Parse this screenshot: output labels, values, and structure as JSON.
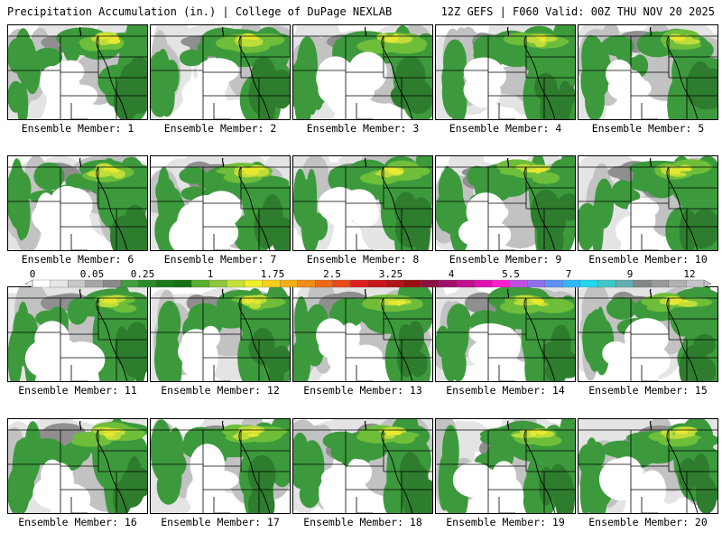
{
  "header": {
    "title_left": "Precipitation Accumulation (in.) | College of DuPage NEXLAB",
    "title_right": "12Z GEFS | F060 Valid: 00Z THU NOV 20 2025"
  },
  "colorbar": {
    "labels": [
      "0",
      "0.05",
      "0.25",
      "1",
      "1.75",
      "2.5",
      "3.25",
      "4",
      "5.5",
      "7",
      "9",
      "12"
    ],
    "colors": [
      "#ffffff",
      "#e6e6e6",
      "#c8c8c8",
      "#a6a6a6",
      "#8a8a8a",
      "#3f9e3f",
      "#2a8a2a",
      "#1a7a1a",
      "#157015",
      "#5ab02e",
      "#8cc63a",
      "#c6e03a",
      "#f0f028",
      "#f7d020",
      "#f5b018",
      "#f08c18",
      "#ec6a1a",
      "#e84a1c",
      "#e02020",
      "#c81818",
      "#b01414",
      "#9a1010",
      "#8a1040",
      "#a0106a",
      "#c0108c",
      "#e010b0",
      "#ff20d0",
      "#c050e0",
      "#9070f0",
      "#6090ff",
      "#30b8ff",
      "#20d8f0",
      "#40c8c8",
      "#60b0b0",
      "#808888",
      "#9a9a9a",
      "#b0b0b0",
      "#c4c4c4"
    ]
  },
  "colors": {
    "green_dark": "#2e7d2e",
    "green": "#3c9a3c",
    "green_light": "#6ebe3a",
    "yellow": "#e8e830",
    "yellow_green": "#bedc3a",
    "gray_light": "#e4e4e4",
    "gray": "#c2c2c2",
    "gray_dark": "#8f8f8f"
  },
  "members": [
    {
      "label": "Ensemble Member: 1"
    },
    {
      "label": "Ensemble Member: 2"
    },
    {
      "label": "Ensemble Member: 3"
    },
    {
      "label": "Ensemble Member: 4"
    },
    {
      "label": "Ensemble Member: 5"
    },
    {
      "label": "Ensemble Member: 6"
    },
    {
      "label": "Ensemble Member: 7"
    },
    {
      "label": "Ensemble Member: 8"
    },
    {
      "label": "Ensemble Member: 9"
    },
    {
      "label": "Ensemble Member: 10"
    },
    {
      "label": "Ensemble Member: 11"
    },
    {
      "label": "Ensemble Member: 12"
    },
    {
      "label": "Ensemble Member: 13"
    },
    {
      "label": "Ensemble Member: 14"
    },
    {
      "label": "Ensemble Member: 15"
    },
    {
      "label": "Ensemble Member: 16"
    },
    {
      "label": "Ensemble Member: 17"
    },
    {
      "label": "Ensemble Member: 18"
    },
    {
      "label": "Ensemble Member: 19"
    },
    {
      "label": "Ensemble Member: 20"
    }
  ]
}
